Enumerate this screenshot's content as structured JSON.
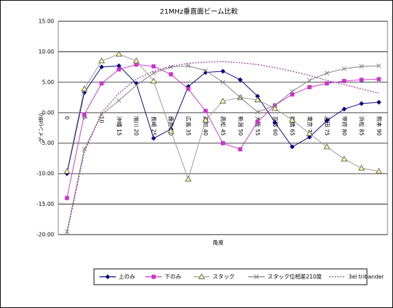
{
  "chart_data": {
    "type": "line",
    "title": "21MHz垂直面ビーム比較",
    "x_label": "角度",
    "y_label": "ゲイン(dBi)",
    "categories": [
      "0",
      "5",
      "10",
      "沖縄 15",
      "旭川 20",
      "長崎 25",
      "鹿島 30",
      "広島 35",
      "高知 40",
      "高松 45",
      "新潟 50",
      "大阪 55",
      "京都 60",
      "前橋 65",
      "東京 70",
      "酒田 75",
      "甲府 80",
      "浜松 85",
      "熊本 90"
    ],
    "ylim": [
      -20,
      15
    ],
    "yticks": [
      {
        "value": -20,
        "label": "-20.00"
      },
      {
        "value": -15,
        "label": "-15.00"
      },
      {
        "value": -10,
        "label": "-10.00"
      },
      {
        "value": -5,
        "label": "-5.00"
      },
      {
        "value": 0,
        "label": "0.00"
      },
      {
        "value": 5,
        "label": "5.00"
      },
      {
        "value": 10,
        "label": "10.00"
      },
      {
        "value": 15,
        "label": "15.00"
      }
    ],
    "grid": true,
    "series": [
      {
        "name": "上のみ",
        "color": "#000080",
        "marker": "diamond",
        "line": "solid",
        "values": [
          -10,
          3.3,
          7.5,
          7.7,
          4.8,
          -4.2,
          -2.7,
          4.3,
          6.6,
          6.8,
          5.4,
          2.7,
          -1.6,
          -5.6,
          -4.0,
          -1.3,
          0.6,
          1.5,
          1.7
        ]
      },
      {
        "name": "下のみ",
        "color": "#cc33cc",
        "marker": "square",
        "line": "solid",
        "values": [
          -14,
          -0.3,
          4.8,
          7.1,
          7.9,
          7.6,
          6.3,
          3.9,
          0.3,
          -5.0,
          -6.0,
          -1.5,
          1.2,
          3.0,
          4.2,
          4.8,
          5.2,
          5.4,
          5.5
        ]
      },
      {
        "name": "スタック",
        "color": "#999999",
        "marker": "triangle",
        "line": "solid",
        "values": [
          -9.6,
          3.9,
          8.5,
          9.6,
          8.5,
          5.2,
          -3.0,
          -10.9,
          -1.2,
          1.9,
          2.5,
          2.1,
          0.7,
          -1.2,
          -3.4,
          -5.6,
          -7.6,
          -9.1,
          -9.6
        ]
      },
      {
        "name": "スタック位相差210度",
        "color": "#808080",
        "marker": "cross",
        "line": "solid",
        "values": [
          -19.5,
          -6,
          -0.3,
          2.0,
          4.5,
          6.5,
          7.5,
          7.7,
          6.9,
          5.0,
          2.5,
          0.1,
          1.2,
          3.5,
          5.3,
          6.5,
          7.2,
          7.6,
          7.7
        ]
      },
      {
        "name": "3el tribander",
        "color": "#993399",
        "marker": "none",
        "line": "dotted",
        "values": [
          -19.8,
          -6.5,
          0,
          3.2,
          5.5,
          6.8,
          7.6,
          8.1,
          8.3,
          8.4,
          8.2,
          7.9,
          7.4,
          6.8,
          6.1,
          5.3,
          4.6,
          3.9,
          3.2
        ]
      }
    ]
  }
}
